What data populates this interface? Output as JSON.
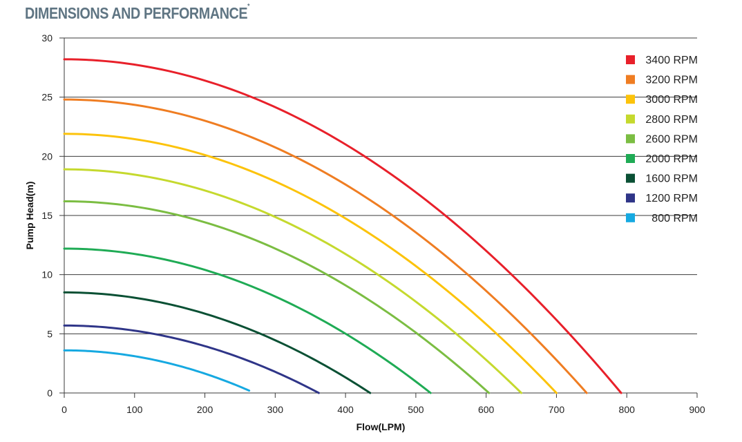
{
  "page": {
    "title": "DIMENSIONS AND PERFORMANCE",
    "title_mark": "*"
  },
  "chart_data": {
    "type": "line",
    "title": "DIMENSIONS AND PERFORMANCE",
    "xlabel": "Flow(LPM)",
    "ylabel": "Pump Head(m)",
    "xlim": [
      0,
      900
    ],
    "ylim": [
      0,
      30
    ],
    "xticks": [
      0,
      100,
      200,
      300,
      400,
      500,
      600,
      700,
      800,
      900
    ],
    "yticks": [
      0,
      5,
      10,
      15,
      20,
      25,
      30
    ],
    "grid": "horizontal",
    "legend_position": "top-right",
    "series": [
      {
        "name": "3400 RPM",
        "color": "#e8202a",
        "shutoff_head": 28.2,
        "max_flow": 792
      },
      {
        "name": "3200 RPM",
        "color": "#ef7d22",
        "shutoff_head": 24.8,
        "max_flow": 743
      },
      {
        "name": "3000 RPM",
        "color": "#fcc30b",
        "shutoff_head": 21.9,
        "max_flow": 700
      },
      {
        "name": "2800 RPM",
        "color": "#c5d92e",
        "shutoff_head": 18.9,
        "max_flow": 650
      },
      {
        "name": "2600 RPM",
        "color": "#7bbd42",
        "shutoff_head": 16.2,
        "max_flow": 604
      },
      {
        "name": "2000 RPM",
        "color": "#1fab55",
        "shutoff_head": 12.2,
        "max_flow": 521
      },
      {
        "name": "1600 RPM",
        "color": "#0a5034",
        "shutoff_head": 8.5,
        "max_flow": 435
      },
      {
        "name": "1200 RPM",
        "color": "#2f3588",
        "shutoff_head": 5.7,
        "max_flow": 362
      },
      {
        "name": "800 RPM",
        "color": "#16a9e1",
        "shutoff_head": 3.6,
        "max_flow": 263,
        "end_head": 0.2
      }
    ]
  }
}
